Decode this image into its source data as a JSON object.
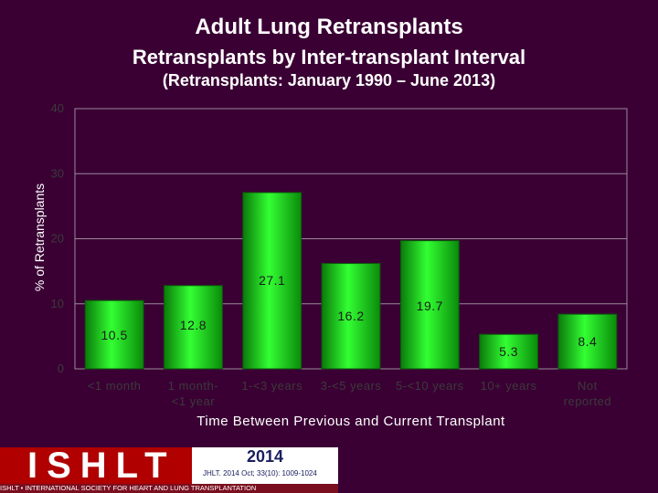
{
  "title": "Adult Lung Retransplants",
  "subtitle": "Retransplants by Inter-transplant Interval",
  "note": "(Retransplants: January 1990 – June 2013)",
  "chart_data": {
    "type": "bar",
    "categories": [
      [
        "<1 month"
      ],
      [
        "1 month-",
        "<1 year"
      ],
      [
        "1-<3 years"
      ],
      [
        "3-<5 years"
      ],
      [
        "5-<10 years"
      ],
      [
        "10+ years"
      ],
      [
        "Not",
        "reported"
      ]
    ],
    "values": [
      10.5,
      12.8,
      27.1,
      16.2,
      19.7,
      5.3,
      8.4
    ],
    "data_labels": [
      "10.5",
      "12.8",
      "27.1",
      "16.2",
      "19.7",
      "5.3",
      "8.4"
    ],
    "xlabel": "Time Between Previous and Current Transplant",
    "ylabel": "% of Retransplants",
    "ylim": [
      0,
      40
    ],
    "yticks": [
      0,
      10,
      20,
      30,
      40
    ],
    "grid": true,
    "bar_color": "#22ee22",
    "plot_background": "#3a0034"
  },
  "footer": {
    "logo_text": "ISHLT",
    "org_name": "ISHLT • INTERNATIONAL SOCIETY FOR HEART AND LUNG TRANSPLANTATION",
    "year": "2014",
    "citation": "JHLT. 2014 Oct; 33(10): 1009-1024"
  }
}
